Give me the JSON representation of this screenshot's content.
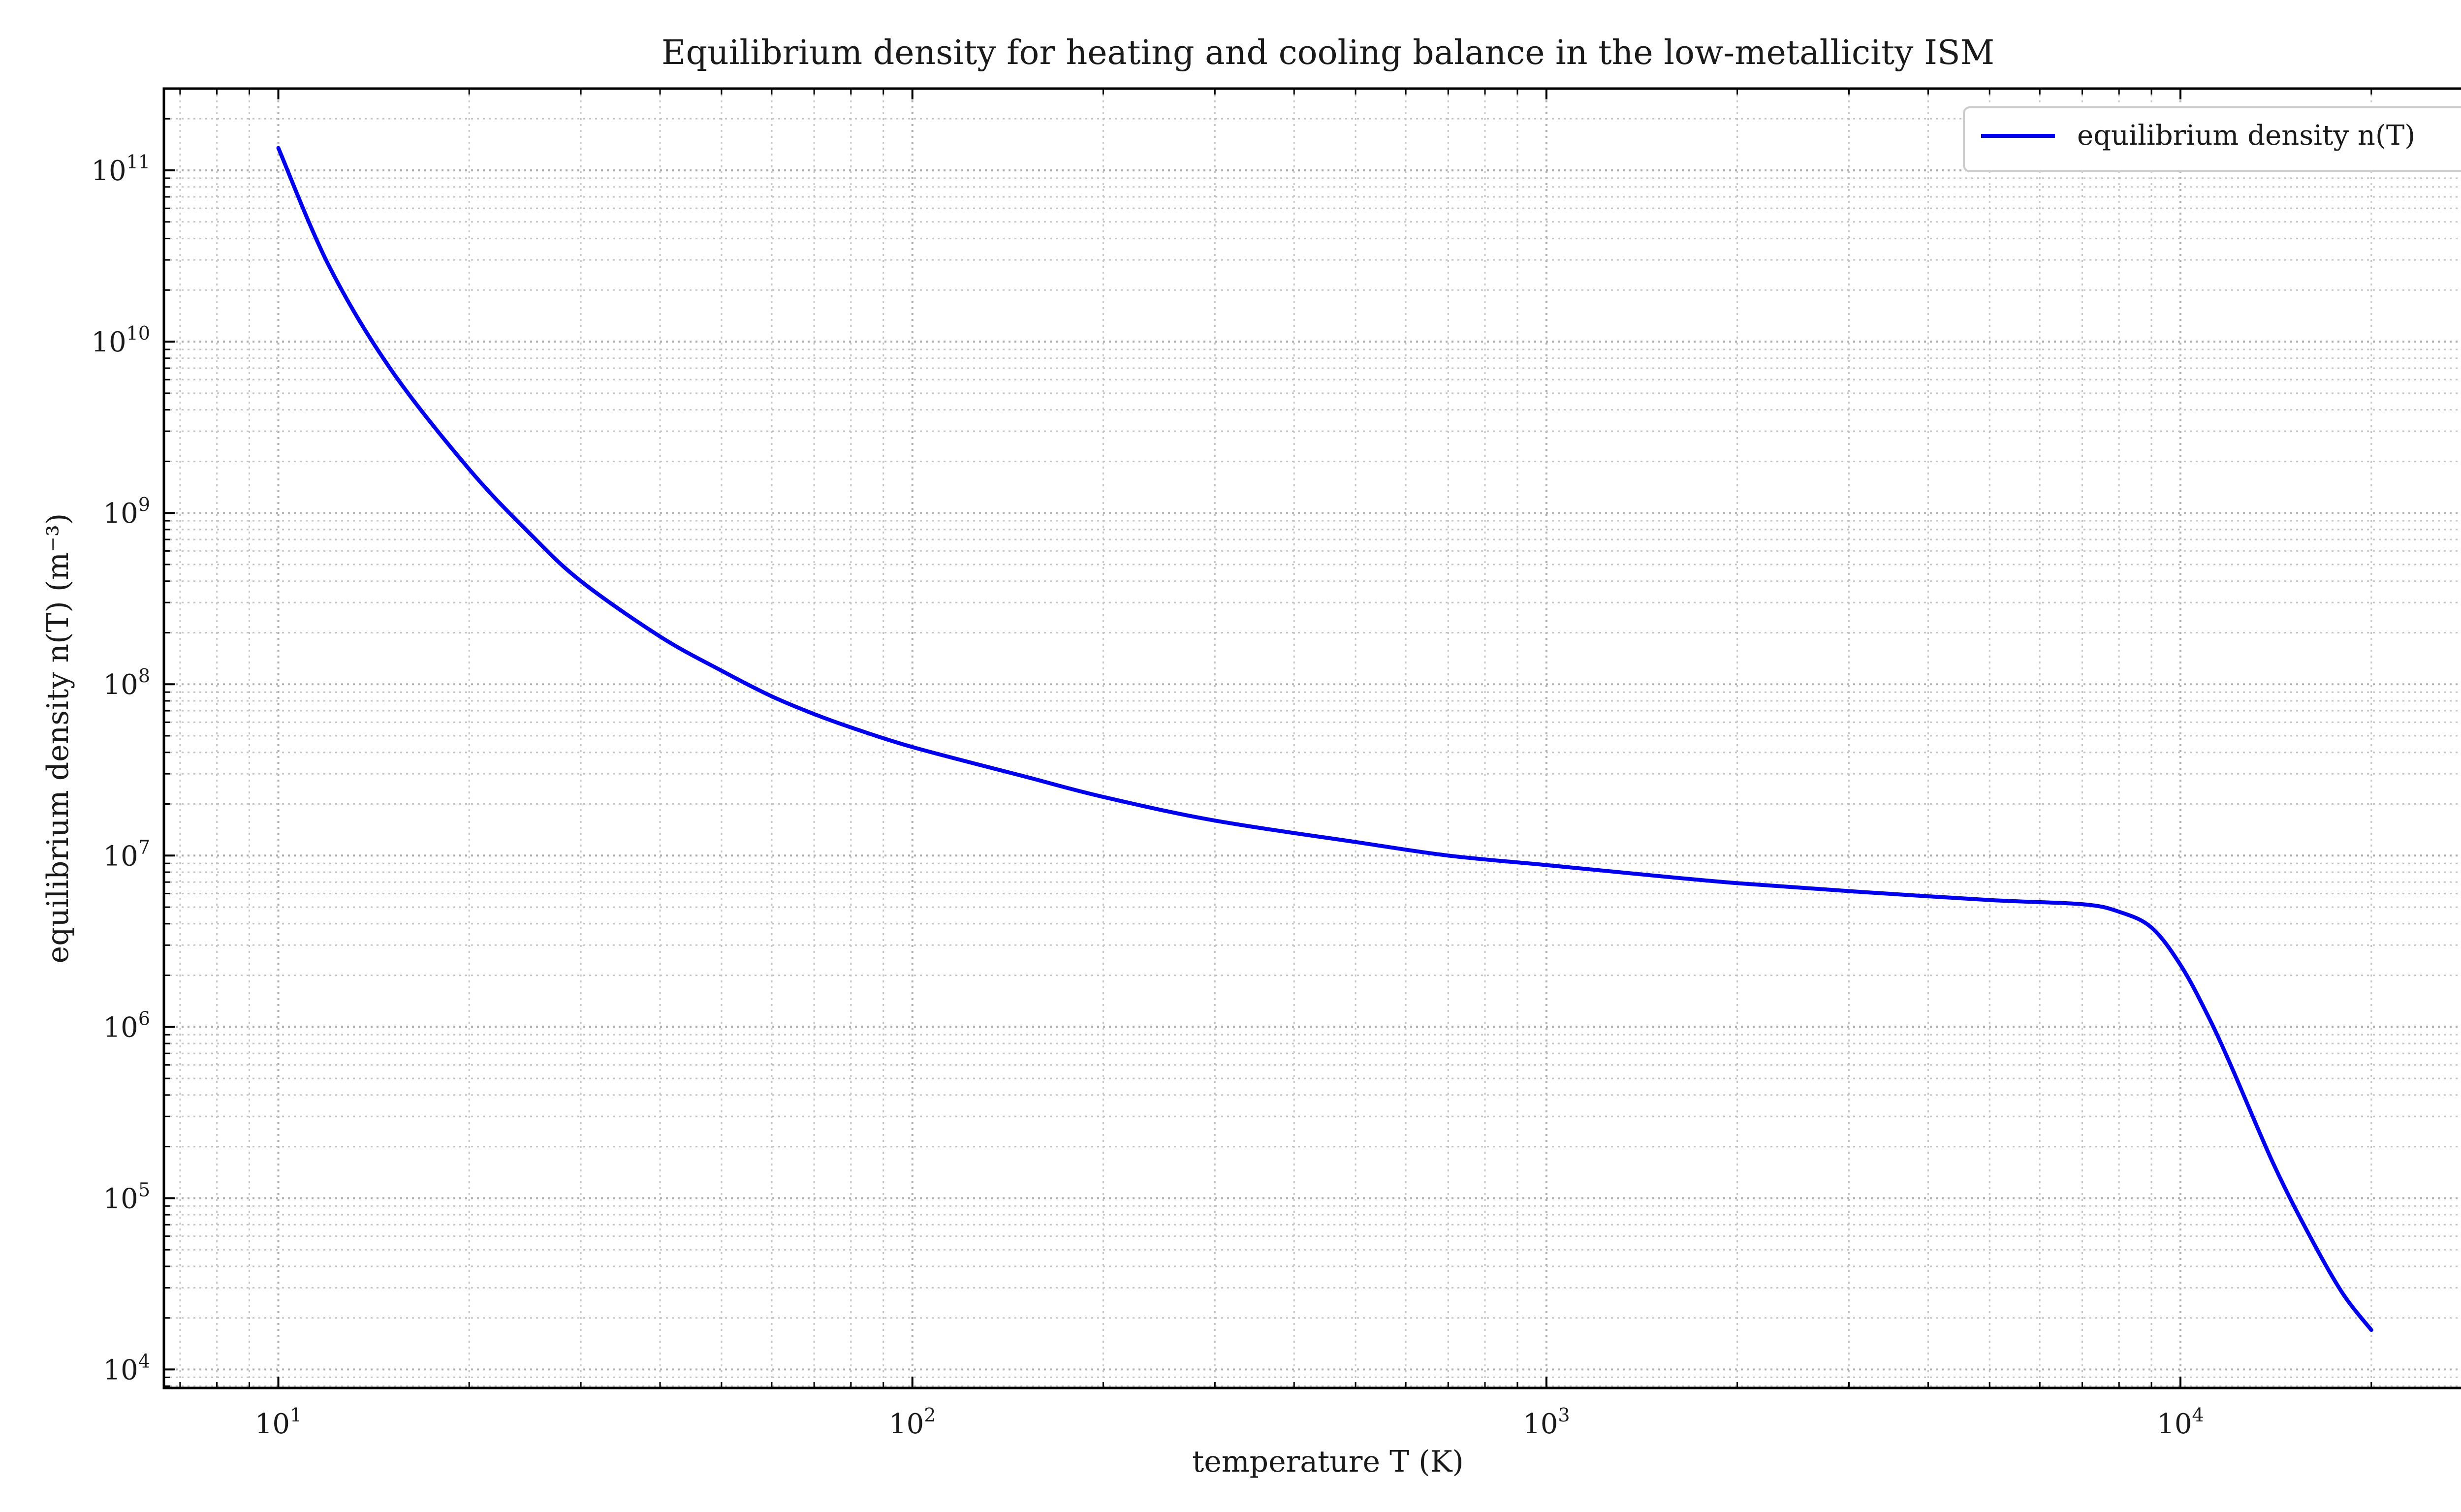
{
  "chart_data": {
    "type": "line",
    "title": "Equilibrium density for heating and cooling balance in the low-metallicity ISM",
    "xlabel": "temperature T (K)",
    "ylabel": "equilibrium density n(T) (m⁻³)",
    "xscale": "log",
    "yscale": "log",
    "xlim": [
      6.6,
      31000
    ],
    "ylim": [
      7800,
      300000000000.0
    ],
    "grid": "both major and minor, dotted gray",
    "legend_placement": "top-right",
    "xticks": [
      {
        "value": 10,
        "base": "10",
        "exp": "1"
      },
      {
        "value": 100,
        "base": "10",
        "exp": "2"
      },
      {
        "value": 1000,
        "base": "10",
        "exp": "3"
      },
      {
        "value": 10000,
        "base": "10",
        "exp": "4"
      }
    ],
    "yticks": [
      {
        "value": 10000,
        "base": "10",
        "exp": "4"
      },
      {
        "value": 100000,
        "base": "10",
        "exp": "5"
      },
      {
        "value": 1000000,
        "base": "10",
        "exp": "6"
      },
      {
        "value": 10000000,
        "base": "10",
        "exp": "7"
      },
      {
        "value": 100000000,
        "base": "10",
        "exp": "8"
      },
      {
        "value": 1000000000,
        "base": "10",
        "exp": "9"
      },
      {
        "value": 10000000000,
        "base": "10",
        "exp": "10"
      },
      {
        "value": 100000000000,
        "base": "10",
        "exp": "11"
      }
    ],
    "series": [
      {
        "name": "equilibrium density n(T)",
        "color": "#0000ee",
        "x": [
          10,
          12,
          15,
          20,
          25,
          30,
          40,
          50,
          60,
          70,
          80,
          100,
          150,
          200,
          300,
          500,
          700,
          1000,
          1500,
          2000,
          3000,
          5000,
          7000,
          8000,
          9000,
          10000,
          11000,
          12000,
          14000,
          16000,
          18000,
          20000
        ],
        "y": [
          135000000000.0,
          28000000000.0,
          7000000000.0,
          1800000000.0,
          750000000.0,
          400000000.0,
          190000000.0,
          120000000.0,
          85000000.0,
          67000000.0,
          56000000.0,
          43000000.0,
          29000000.0,
          22000000.0,
          16000000.0,
          12000000.0,
          10000000.0,
          8800000.0,
          7600000.0,
          6900000.0,
          6200000.0,
          5500000.0,
          5200000.0,
          4700000.0,
          3800000.0,
          2300000.0,
          1200000.0,
          600000.0,
          160000.0,
          60000.0,
          28000.0,
          17000.0
        ]
      }
    ]
  }
}
